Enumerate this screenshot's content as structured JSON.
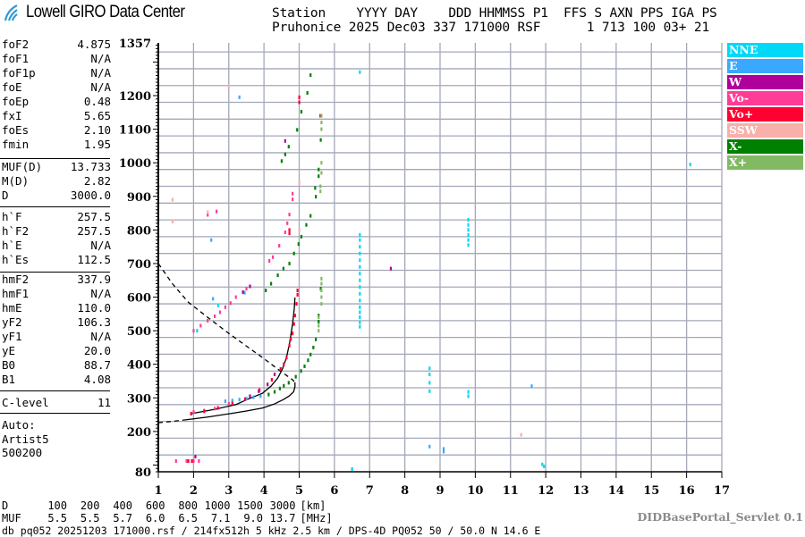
{
  "header": {
    "logo_text": "Lowell GIRO Data Center",
    "line1": "Station    YYYY DAY    DDD HHMMSS P1  FFS S AXN PPS IGA PS",
    "line2": "Pruhonice 2025 Dec03 337 171000 RSF      1 713 100 03+ 21"
  },
  "params": {
    "group1": [
      {
        "key": "foF2",
        "value": "4.875"
      },
      {
        "key": "foF1",
        "value": "N/A"
      },
      {
        "key": "foF1p",
        "value": "N/A"
      },
      {
        "key": "foE",
        "value": "N/A"
      },
      {
        "key": "foEp",
        "value": "0.48"
      },
      {
        "key": "fxI",
        "value": "5.65"
      },
      {
        "key": "foEs",
        "value": "2.10"
      },
      {
        "key": "fmin",
        "value": "1.95"
      }
    ],
    "group2": [
      {
        "key": "MUF(D)",
        "value": "13.733"
      },
      {
        "key": "M(D)",
        "value": "2.82"
      },
      {
        "key": "D",
        "value": "3000.0"
      }
    ],
    "group3": [
      {
        "key": "h`F",
        "value": "257.5"
      },
      {
        "key": "h`F2",
        "value": "257.5"
      },
      {
        "key": "h`E",
        "value": "N/A"
      },
      {
        "key": "h`Es",
        "value": "112.5"
      }
    ],
    "group4": [
      {
        "key": "hmF2",
        "value": "337.9"
      },
      {
        "key": "hmF1",
        "value": "N/A"
      },
      {
        "key": "hmE",
        "value": "110.0"
      },
      {
        "key": "yF2",
        "value": "106.3"
      },
      {
        "key": "yF1",
        "value": "N/A"
      },
      {
        "key": "yE",
        "value": "20.0"
      },
      {
        "key": "B0",
        "value": "88.7"
      },
      {
        "key": "B1",
        "value": "4.08"
      }
    ],
    "clevel": {
      "key": "C-level",
      "value": "11"
    },
    "auto": [
      "Auto:",
      "Artist5",
      "500200"
    ]
  },
  "muf_table": {
    "d_label": "D",
    "d_values": [
      "100",
      "200",
      "400",
      "600",
      "800",
      "1000",
      "1500",
      "3000"
    ],
    "d_unit": "[km]",
    "muf_label": "MUF",
    "muf_values": [
      "5.5",
      "5.5",
      "5.7",
      "6.0",
      "6.5",
      "7.1",
      "9.0",
      "13.7"
    ],
    "muf_unit": "[MHz]"
  },
  "footer": "db pq052 20251203 171000.rsf / 214fx512h 5 kHz 2.5 km / DPS-4D PQ052 50 / 50.0 N 14.6 E",
  "servlet": "DIDBasePortal_Servlet 0.1",
  "chart_data": {
    "type": "scatter",
    "xlim": [
      1,
      17
    ],
    "ylim": [
      80,
      1357
    ],
    "x_ticks": [
      "1",
      "2",
      "3",
      "4",
      "5",
      "6",
      "7",
      "8",
      "9",
      "10",
      "11",
      "12",
      "13",
      "14",
      "15",
      "16",
      "17"
    ],
    "y_ticks": [
      "1357",
      "1200",
      "1100",
      "1000",
      "900",
      "800",
      "700",
      "600",
      "500",
      "400",
      "300",
      "200",
      "80"
    ],
    "grid": true,
    "legend_position": "right",
    "series": [
      {
        "name": "NNE",
        "color": "#00d8f8",
        "points": [
          [
            6.72,
            512
          ],
          [
            6.72,
            525
          ],
          [
            6.72,
            540
          ],
          [
            6.72,
            555
          ],
          [
            6.72,
            570
          ],
          [
            6.72,
            590
          ],
          [
            6.72,
            610
          ],
          [
            6.72,
            630
          ],
          [
            6.72,
            650
          ],
          [
            6.72,
            670
          ],
          [
            6.72,
            690
          ],
          [
            6.72,
            710
          ],
          [
            6.72,
            730
          ],
          [
            6.72,
            750
          ],
          [
            6.72,
            770
          ],
          [
            6.72,
            785
          ],
          [
            9.8,
            755
          ],
          [
            9.8,
            770
          ],
          [
            9.8,
            785
          ],
          [
            9.8,
            800
          ],
          [
            9.8,
            815
          ],
          [
            9.8,
            830
          ],
          [
            9.8,
            305
          ],
          [
            9.8,
            318
          ],
          [
            8.7,
            320
          ],
          [
            8.7,
            345
          ],
          [
            8.7,
            370
          ],
          [
            8.7,
            388
          ],
          [
            11.9,
            102
          ],
          [
            11.95,
            96
          ],
          [
            6.5,
            88
          ],
          [
            16.1,
            995
          ],
          [
            6.72,
            1270
          ],
          [
            2.1,
            500
          ],
          [
            2.7,
            575
          ]
        ]
      },
      {
        "name": "E",
        "color": "#3aa8ff",
        "points": [
          [
            2.9,
            290
          ],
          [
            3.1,
            292
          ],
          [
            3.3,
            295
          ],
          [
            3.5,
            298
          ],
          [
            3.7,
            302
          ],
          [
            3.9,
            305
          ],
          [
            2.55,
            595
          ],
          [
            3.45,
            613
          ],
          [
            2.5,
            770
          ],
          [
            8.7,
            155
          ],
          [
            9.1,
            148
          ],
          [
            9.1,
            140
          ],
          [
            11.6,
            335
          ],
          [
            3.3,
            1195
          ]
        ]
      },
      {
        "name": "W",
        "color": "#b0009c",
        "points": [
          [
            3.6,
            305
          ],
          [
            3.85,
            320
          ],
          [
            4.1,
            340
          ],
          [
            4.3,
            370
          ],
          [
            3.6,
            632
          ],
          [
            3.4,
            615
          ],
          [
            4.6,
            1065
          ],
          [
            7.6,
            685
          ],
          [
            2.05,
            125
          ]
        ]
      },
      {
        "name": "Vo-",
        "color": "#ff3c96",
        "points": [
          [
            2.0,
            500
          ],
          [
            2.2,
            515
          ],
          [
            2.4,
            530
          ],
          [
            2.6,
            543
          ],
          [
            2.75,
            555
          ],
          [
            2.9,
            570
          ],
          [
            3.05,
            582
          ],
          [
            3.2,
            600
          ],
          [
            3.5,
            625
          ],
          [
            4.25,
            719
          ],
          [
            4.43,
            753
          ],
          [
            4.6,
            793
          ],
          [
            4.66,
            820
          ],
          [
            4.72,
            846
          ],
          [
            4.81,
            891
          ],
          [
            4.81,
            908
          ],
          [
            2.0,
            258
          ],
          [
            2.3,
            262
          ],
          [
            2.6,
            268
          ],
          [
            3.0,
            282
          ],
          [
            1.5,
            112
          ],
          [
            1.8,
            112
          ],
          [
            2.0,
            112
          ],
          [
            2.15,
            112
          ],
          [
            2.65,
            855
          ],
          [
            2.4,
            845
          ],
          [
            4.15,
            708
          ]
        ]
      },
      {
        "name": "Vo+",
        "color": "#ff0033",
        "points": [
          [
            1.93,
            253
          ],
          [
            2.3,
            260
          ],
          [
            2.69,
            270
          ],
          [
            3.1,
            283
          ],
          [
            3.46,
            296
          ],
          [
            3.87,
            323
          ],
          [
            4.22,
            354
          ],
          [
            4.47,
            386
          ],
          [
            4.56,
            400
          ],
          [
            4.64,
            420
          ],
          [
            4.72,
            456
          ],
          [
            4.76,
            475
          ],
          [
            4.81,
            492
          ],
          [
            4.85,
            520
          ],
          [
            4.88,
            545
          ],
          [
            4.92,
            580
          ],
          [
            4.95,
            607
          ],
          [
            4.95,
            620
          ],
          [
            1.85,
            112
          ],
          [
            1.95,
            112
          ],
          [
            4.72,
            790
          ],
          [
            4.72,
            800
          ],
          [
            5.0,
            1195
          ],
          [
            5.0,
            1180
          ],
          [
            5.6,
            1140
          ]
        ]
      },
      {
        "name": "SSW",
        "color": "#f8b0a8",
        "points": [
          [
            1.4,
            890
          ],
          [
            1.4,
            825
          ],
          [
            2.4,
            853
          ],
          [
            5.0,
            940
          ],
          [
            3.0,
            1228
          ],
          [
            5.0,
            800
          ],
          [
            11.3,
            190
          ]
        ]
      },
      {
        "name": "X-",
        "color": "#008000",
        "points": [
          [
            4.13,
            310
          ],
          [
            4.3,
            318
          ],
          [
            4.45,
            328
          ],
          [
            4.56,
            336
          ],
          [
            4.7,
            345
          ],
          [
            4.9,
            363
          ],
          [
            5.05,
            380
          ],
          [
            5.15,
            394
          ],
          [
            5.25,
            412
          ],
          [
            5.32,
            429
          ],
          [
            5.4,
            450
          ],
          [
            5.47,
            474
          ],
          [
            5.55,
            527
          ],
          [
            5.55,
            545
          ],
          [
            5.61,
            625
          ],
          [
            4.05,
            620
          ],
          [
            4.2,
            640
          ],
          [
            4.39,
            665
          ],
          [
            4.55,
            685
          ],
          [
            4.72,
            700
          ],
          [
            4.85,
            730
          ],
          [
            4.98,
            758
          ],
          [
            5.06,
            780
          ],
          [
            5.2,
            815
          ],
          [
            5.32,
            842
          ],
          [
            5.47,
            899
          ],
          [
            5.55,
            960
          ],
          [
            5.55,
            980
          ],
          [
            5.61,
            1068
          ],
          [
            4.94,
            1098
          ],
          [
            5.06,
            1152
          ],
          [
            5.23,
            1208
          ],
          [
            5.32,
            1261
          ],
          [
            4.7,
            1048
          ],
          [
            4.6,
            1025
          ],
          [
            4.5,
            1005
          ],
          [
            5.45,
            925
          ]
        ]
      },
      {
        "name": "X+",
        "color": "#82b964",
        "points": [
          [
            5.63,
            655
          ],
          [
            5.63,
            640
          ],
          [
            5.63,
            620
          ],
          [
            5.63,
            600
          ],
          [
            5.63,
            580
          ],
          [
            5.55,
            540
          ],
          [
            5.55,
            515
          ],
          [
            5.55,
            500
          ],
          [
            5.63,
            1140
          ],
          [
            5.63,
            1120
          ],
          [
            5.63,
            1100
          ],
          [
            5.63,
            1000
          ],
          [
            5.63,
            970
          ],
          [
            5.6,
            930
          ],
          [
            5.6,
            915
          ]
        ]
      }
    ],
    "curves": [
      {
        "style": "solid",
        "points": [
          [
            1.93,
            253
          ],
          [
            2.6,
            266
          ],
          [
            3.2,
            280
          ],
          [
            3.54,
            296
          ],
          [
            3.96,
            314
          ],
          [
            4.2,
            335
          ],
          [
            4.39,
            359
          ],
          [
            4.52,
            385
          ],
          [
            4.64,
            420
          ],
          [
            4.73,
            465
          ],
          [
            4.81,
            519
          ],
          [
            4.86,
            565
          ],
          [
            4.88,
            599
          ]
        ]
      },
      {
        "style": "solid",
        "points": [
          [
            1.72,
            234
          ],
          [
            2.4,
            243
          ],
          [
            3.03,
            253
          ],
          [
            3.5,
            261
          ],
          [
            3.96,
            270
          ],
          [
            4.3,
            282
          ],
          [
            4.55,
            295
          ],
          [
            4.72,
            306
          ],
          [
            4.84,
            318
          ],
          [
            4.88,
            333
          ],
          [
            4.88,
            346
          ]
        ]
      },
      {
        "style": "dashed",
        "points": [
          [
            1.0,
            226
          ],
          [
            1.4,
            230
          ],
          [
            1.72,
            234
          ]
        ]
      },
      {
        "style": "dashed",
        "points": [
          [
            1.0,
            700
          ],
          [
            1.4,
            640
          ],
          [
            1.85,
            585
          ],
          [
            2.4,
            540
          ],
          [
            2.95,
            496
          ],
          [
            3.45,
            458
          ],
          [
            3.96,
            420
          ],
          [
            4.4,
            385
          ],
          [
            4.81,
            354
          ],
          [
            4.88,
            346
          ]
        ]
      }
    ]
  }
}
